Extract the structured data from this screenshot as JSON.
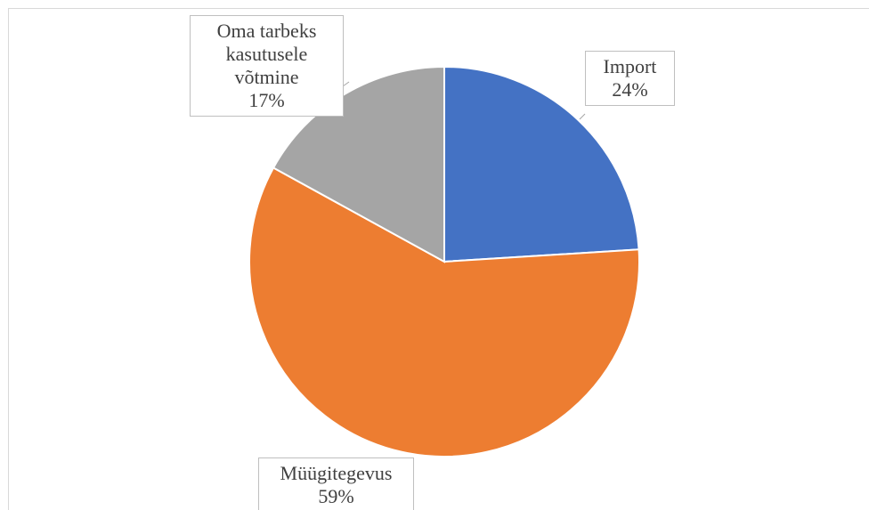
{
  "chart_data": {
    "type": "pie",
    "categories": [
      "Import",
      "Müügitegevus",
      "Oma tarbeks kasutusele võtmine"
    ],
    "values": [
      24,
      59,
      17
    ],
    "value_labels": [
      "24%",
      "59%",
      "17%"
    ],
    "colors": [
      "#4472c4",
      "#ed7d31",
      "#a5a5a5"
    ]
  }
}
